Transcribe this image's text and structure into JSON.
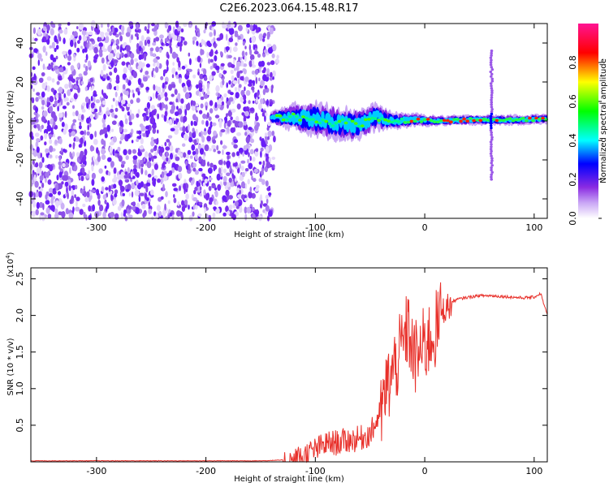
{
  "title": "C2E6.2023.064.15.48.R17",
  "chart_data": [
    {
      "type": "heatmap",
      "xlabel": "Height of straight line (km)",
      "ylabel": "Frequency (Hz)",
      "xlim": [
        -360,
        112
      ],
      "ylim": [
        -50,
        50
      ],
      "xticks": [
        -300,
        -200,
        -100,
        0,
        100
      ],
      "yticks": [
        -40,
        -20,
        0,
        20,
        40
      ],
      "noise_region_x": [
        -360,
        -140
      ],
      "signal_band": [
        {
          "x": -140,
          "freq": 1.5,
          "width": 4
        },
        {
          "x": -120,
          "freq": 2.0,
          "width": 8
        },
        {
          "x": -100,
          "freq": 1.0,
          "width": 10
        },
        {
          "x": -80,
          "freq": -1.0,
          "width": 10
        },
        {
          "x": -60,
          "freq": -2.0,
          "width": 9
        },
        {
          "x": -45,
          "freq": 2.0,
          "width": 8
        },
        {
          "x": -30,
          "freq": 0.0,
          "width": 5
        },
        {
          "x": -10,
          "freq": 0.5,
          "width": 4
        },
        {
          "x": 10,
          "freq": 0.0,
          "width": 3
        },
        {
          "x": 40,
          "freq": 0.5,
          "width": 3
        },
        {
          "x": 60,
          "freq": 0.5,
          "width": 3
        },
        {
          "x": 80,
          "freq": 0.5,
          "width": 3
        },
        {
          "x": 112,
          "freq": 1.0,
          "width": 3
        }
      ],
      "vertical_streak": {
        "x": 61,
        "freq_range": [
          -30,
          37
        ]
      },
      "colorbar": {
        "label": "Normalized spectral amplitude",
        "range": [
          0.0,
          1.0
        ],
        "ticks": [
          0.0,
          0.2,
          0.4,
          0.6,
          0.8
        ],
        "tick_labels": [
          "0.0",
          "0.2",
          "0.4",
          "0.6",
          "0.8"
        ],
        "colors": [
          "#ffffff",
          "#8a2be2",
          "#0000ff",
          "#00ffff",
          "#00ff00",
          "#ffff00",
          "#ff0000",
          "#ff00a0"
        ]
      }
    },
    {
      "type": "line",
      "xlabel": "Height of straight line (km)",
      "ylabel": "SNR (10 * v/v)",
      "y_multiplier": "(x10",
      "y_multiplier_exp": "4",
      "y_multiplier_close": ")",
      "xlim": [
        -360,
        112
      ],
      "ylim": [
        0,
        2.65
      ],
      "xticks": [
        -300,
        -200,
        -100,
        0,
        100
      ],
      "yticks": [
        0.5,
        1.0,
        1.5,
        2.0,
        2.5
      ],
      "ytick_labels": [
        "0.5",
        "1.0",
        "1.5",
        "2.0",
        "2.5"
      ],
      "series": [
        {
          "color": "#e8302a",
          "points": [
            [
              -360,
              0.01
            ],
            [
              -300,
              0.01
            ],
            [
              -250,
              0.01
            ],
            [
              -200,
              0.01
            ],
            [
              -150,
              0.01
            ],
            [
              -130,
              0.02
            ],
            [
              -120,
              0.05
            ],
            [
              -110,
              0.12
            ],
            [
              -100,
              0.2
            ],
            [
              -90,
              0.28
            ],
            [
              -80,
              0.3
            ],
            [
              -70,
              0.33
            ],
            [
              -60,
              0.35
            ],
            [
              -50,
              0.42
            ],
            [
              -45,
              0.55
            ],
            [
              -40,
              0.75
            ],
            [
              -35,
              1.1
            ],
            [
              -30,
              1.3
            ],
            [
              -25,
              1.5
            ],
            [
              -20,
              1.7
            ],
            [
              -15,
              1.95
            ],
            [
              -10,
              1.5
            ],
            [
              -5,
              1.6
            ],
            [
              0,
              1.7
            ],
            [
              5,
              1.8
            ],
            [
              10,
              1.9
            ],
            [
              15,
              2.1
            ],
            [
              20,
              2.15
            ],
            [
              30,
              2.22
            ],
            [
              40,
              2.25
            ],
            [
              50,
              2.27
            ],
            [
              60,
              2.27
            ],
            [
              70,
              2.26
            ],
            [
              80,
              2.25
            ],
            [
              90,
              2.24
            ],
            [
              100,
              2.25
            ],
            [
              106,
              2.3
            ],
            [
              112,
              2.0
            ]
          ]
        }
      ]
    }
  ]
}
